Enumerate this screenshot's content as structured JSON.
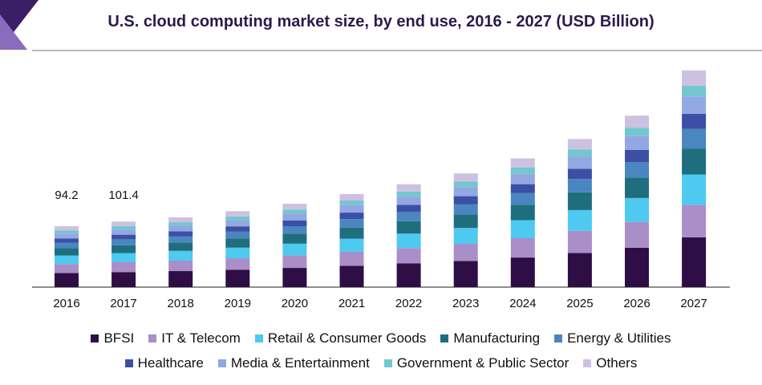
{
  "chart_data": {
    "type": "bar",
    "stacked": true,
    "title": "U.S. cloud computing market size, by end use, 2016 - 2027 (USD Billion)",
    "xlabel": "",
    "ylabel": "",
    "categories": [
      "2016",
      "2017",
      "2018",
      "2019",
      "2020",
      "2021",
      "2022",
      "2023",
      "2024",
      "2025",
      "2026",
      "2027"
    ],
    "totals": [
      94.2,
      101.4,
      108.0,
      117.5,
      129.0,
      144.0,
      159.0,
      176.0,
      199.0,
      229.0,
      265.0,
      335.0
    ],
    "annotations": [
      {
        "category": "2016",
        "text": "94.2"
      },
      {
        "category": "2017",
        "text": "101.4"
      }
    ],
    "series": [
      {
        "name": "BFSI",
        "color": "#2e0e45",
        "values": [
          21.7,
          23.3,
          24.8,
          27.0,
          29.7,
          33.1,
          36.6,
          40.5,
          45.8,
          52.7,
          61.0,
          77.1
        ]
      },
      {
        "name": "IT & Telecom",
        "color": "#a98ec8",
        "values": [
          14.1,
          15.2,
          16.2,
          17.6,
          19.4,
          21.6,
          23.9,
          26.4,
          29.9,
          34.4,
          39.8,
          50.3
        ]
      },
      {
        "name": "Retail & Consumer Goods",
        "color": "#4ec9f0",
        "values": [
          13.2,
          14.2,
          15.1,
          16.5,
          18.1,
          20.2,
          22.3,
          24.6,
          27.9,
          32.1,
          37.1,
          46.9
        ]
      },
      {
        "name": "Manufacturing",
        "color": "#1f6e7e",
        "values": [
          11.3,
          12.2,
          13.0,
          14.1,
          15.5,
          17.3,
          19.1,
          21.1,
          23.9,
          27.5,
          31.8,
          40.2
        ]
      },
      {
        "name": "Energy & Utilities",
        "color": "#4a86c0",
        "values": [
          8.5,
          9.1,
          9.7,
          10.6,
          11.6,
          13.0,
          14.3,
          15.8,
          17.9,
          20.6,
          23.9,
          30.2
        ]
      },
      {
        "name": "Healthcare",
        "color": "#3c4fa6",
        "values": [
          6.6,
          7.1,
          7.6,
          8.2,
          9.0,
          10.1,
          11.1,
          12.3,
          13.9,
          16.0,
          18.6,
          23.5
        ]
      },
      {
        "name": "Media & Entertainment",
        "color": "#93a8e2",
        "values": [
          7.5,
          8.1,
          8.6,
          9.4,
          10.3,
          11.5,
          12.7,
          14.1,
          15.9,
          18.3,
          21.2,
          26.8
        ]
      },
      {
        "name": "Government & Public Sector",
        "color": "#73c7cf",
        "values": [
          4.7,
          5.1,
          5.4,
          5.9,
          6.5,
          7.2,
          8.0,
          8.8,
          10.0,
          11.5,
          13.3,
          16.8
        ]
      },
      {
        "name": "Others",
        "color": "#cdc1e2",
        "values": [
          6.6,
          7.1,
          7.6,
          8.2,
          9.0,
          10.1,
          11.1,
          12.3,
          13.9,
          16.0,
          18.6,
          23.5
        ]
      }
    ]
  }
}
